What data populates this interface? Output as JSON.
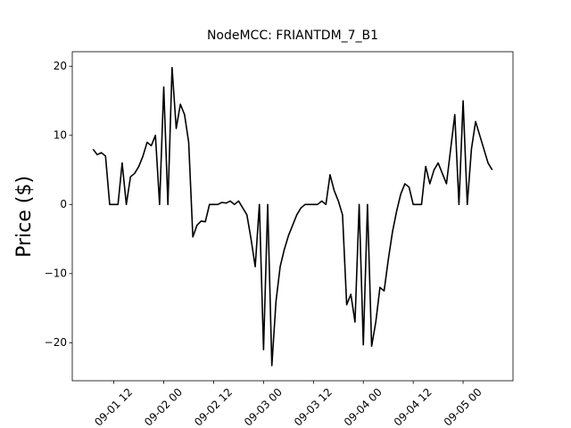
{
  "chart_data": {
    "type": "line",
    "title": "NodeMCC: FRIANTDM_7_B1",
    "y_label": "Price ($)",
    "color": "#000000",
    "grid": false,
    "x": [
      "09-01 07",
      "09-01 08",
      "09-01 09",
      "09-01 10",
      "09-01 11",
      "09-01 12",
      "09-01 13",
      "09-01 14",
      "09-01 15",
      "09-01 16",
      "09-01 17",
      "09-01 18",
      "09-01 19",
      "09-01 20",
      "09-01 21",
      "09-01 22",
      "09-01 23",
      "09-02 00",
      "09-02 01",
      "09-02 02",
      "09-02 03",
      "09-02 04",
      "09-02 05",
      "09-02 06",
      "09-02 07",
      "09-02 08",
      "09-02 09",
      "09-02 10",
      "09-02 11",
      "09-02 12",
      "09-02 13",
      "09-02 14",
      "09-02 15",
      "09-02 16",
      "09-02 17",
      "09-02 18",
      "09-02 19",
      "09-02 20",
      "09-02 21",
      "09-02 22",
      "09-02 23",
      "09-03 00",
      "09-03 01",
      "09-03 02",
      "09-03 03",
      "09-03 04",
      "09-03 05",
      "09-03 06",
      "09-03 07",
      "09-03 08",
      "09-03 09",
      "09-03 10",
      "09-03 11",
      "09-03 12",
      "09-03 13",
      "09-03 14",
      "09-03 15",
      "09-03 16",
      "09-03 17",
      "09-03 18",
      "09-03 19",
      "09-03 20",
      "09-03 21",
      "09-03 22",
      "09-03 23",
      "09-04 00",
      "09-04 01",
      "09-04 02",
      "09-04 03",
      "09-04 04",
      "09-04 05",
      "09-04 06",
      "09-04 07",
      "09-04 08",
      "09-04 09",
      "09-04 10",
      "09-04 11",
      "09-04 12",
      "09-04 13",
      "09-04 14",
      "09-04 15",
      "09-04 16",
      "09-04 17",
      "09-04 18",
      "09-04 19",
      "09-04 20",
      "09-04 21",
      "09-04 22",
      "09-04 23",
      "09-05 00",
      "09-05 01",
      "09-05 02",
      "09-05 03",
      "09-05 04",
      "09-05 05",
      "09-05 06",
      "09-05 07"
    ],
    "values": [
      8,
      7.2,
      7.5,
      7,
      0,
      0,
      0,
      6,
      0,
      4,
      4.5,
      5.5,
      7,
      9,
      8.5,
      10,
      0,
      17,
      0,
      19.8,
      11,
      14.5,
      13,
      9,
      -4.7,
      -3,
      -2.4,
      -2.5,
      0,
      0,
      0,
      0.3,
      0.2,
      0.5,
      0,
      0.5,
      -0.5,
      -1.5,
      -5,
      -9,
      0,
      -21,
      0,
      -23.3,
      -14,
      -9,
      -6.5,
      -4.5,
      -3,
      -1.5,
      -0.5,
      0,
      0,
      0,
      0,
      0.5,
      0,
      4.3,
      2,
      0.5,
      -1.5,
      -14.5,
      -13,
      -17,
      0,
      -20.3,
      0,
      -20.5,
      -17,
      -12,
      -12.5,
      -8,
      -4,
      -1,
      1.5,
      3,
      2.5,
      0,
      0,
      0,
      5.5,
      3,
      5,
      6,
      4.5,
      3,
      8,
      13,
      0,
      15,
      0,
      8,
      12,
      10,
      8,
      6,
      5
    ],
    "xlim": [
      "09-01 02",
      "09-05 12"
    ],
    "xticks": [
      "09-01 12",
      "09-02 00",
      "09-02 12",
      "09-03 00",
      "09-03 12",
      "09-04 00",
      "09-04 12",
      "09-05 00"
    ],
    "ylim": [
      -25.5,
      22.1
    ],
    "yticks": [
      {
        "value": -20,
        "label": "−20"
      },
      {
        "value": -10,
        "label": "−10"
      },
      0,
      10,
      20
    ]
  }
}
